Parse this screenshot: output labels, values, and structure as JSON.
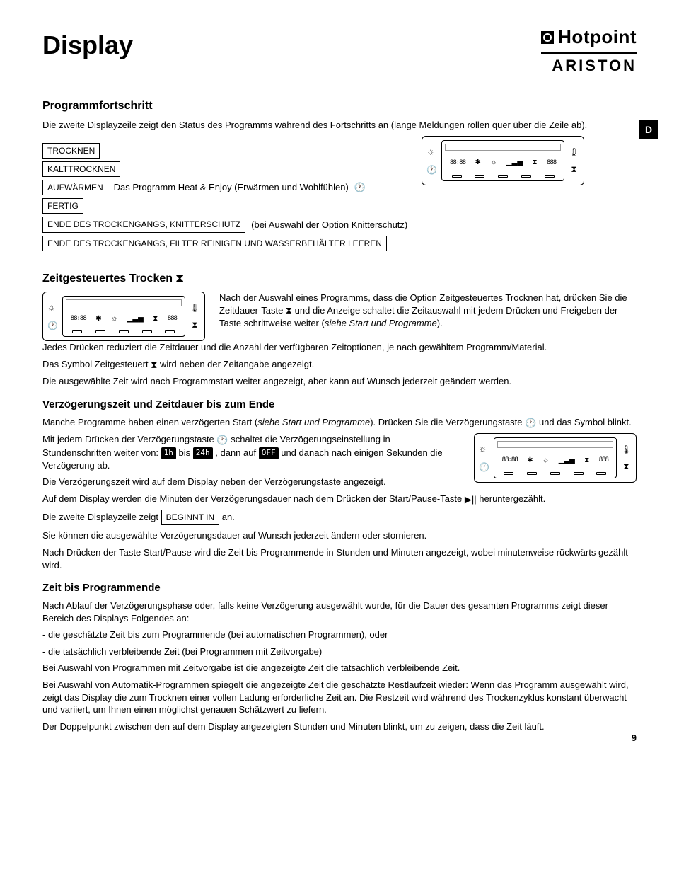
{
  "title": "Display",
  "brand": {
    "line1": "Hotpoint",
    "line2": "ARISTON"
  },
  "lang_tab": "D",
  "page_number": "9",
  "section1": {
    "heading": "Programmfortschritt",
    "intro": "Die zweite Displayzeile zeigt den Status des Programms während des Fortschritts an (lange Meldungen rollen quer über die Zeile ab).",
    "rows": [
      {
        "label": "TROCKNEN"
      },
      {
        "label": "KALTTROCKNEN"
      },
      {
        "label": "AUFWÄRMEN",
        "note": "Das Programm Heat & Enjoy (Erwärmen und Wohlfühlen)"
      },
      {
        "label": "FERTIG"
      },
      {
        "label": "ENDE DES TROCKENGANGS, KNITTERSCHUTZ",
        "note": "(bei Auswahl der Option Knitterschutz)"
      },
      {
        "label": "ENDE DES TROCKENGANGS, FILTER REINIGEN UND WASSERBEHÄLTER LEEREN"
      }
    ]
  },
  "section2": {
    "heading": "Zeitgesteuertes Trocken",
    "para_inline": "Nach der Auswahl eines Programms, dass die Option Zeitgesteuertes Trocknen hat, drücken Sie die Zeitdauer-Taste ⧗ und die Anzeige schaltet die Zeitauswahl mit jedem Drücken und Freigeben der Taste schrittweise weiter (",
    "para_inline_italic": "siehe Start und Programme",
    "para_inline_end": ").",
    "p2": "Jedes Drücken reduziert die Zeitdauer und die Anzahl der verfügbaren Zeitoptionen, je nach gewähltem Programm/Material.",
    "p3a": "Das Symbol Zeitgesteuert ",
    "p3b": " wird neben der Zeitangabe angezeigt.",
    "p4": "Die ausgewählte Zeit wird nach Programmstart weiter angezeigt, aber kann auf Wunsch jederzeit geändert werden."
  },
  "section3": {
    "heading": "Verzögerungszeit und Zeitdauer bis zum Ende",
    "p1a": "Manche Programme haben einen verzögerten Start (",
    "p1_italic": "siehe Start und Programme",
    "p1b": "). Drücken Sie die Verzögerungstaste ",
    "p1c": " und das Symbol blinkt.",
    "p2a": "Mit jedem Drücken der Verzögerungstaste ",
    "p2b": " schaltet die Verzögerungseinstellung in Stundenschritten weiter von: ",
    "pill_1h": "1h",
    "p2c": " bis ",
    "pill_24h": "24h",
    "p2d": " , dann auf ",
    "pill_off": "OFF",
    "p2e": " und danach nach einigen Sekunden die Verzögerung ab.",
    "p3": "Die Verzögerungszeit wird auf dem Display neben der Verzögerungstaste angezeigt.",
    "p4a": "Auf dem Display werden die Minuten der Verzögerungsdauer nach dem Drücken der Start/Pause-Taste ",
    "p4b": " heruntergezählt.",
    "p5a": "Die zweite Displayzeile zeigt ",
    "p5_box": "BEGINNT IN",
    "p5b": " an.",
    "p6": "Sie können die ausgewählte Verzögerungsdauer auf Wunsch jederzeit ändern oder stornieren.",
    "p7": "Nach Drücken der Taste Start/Pause wird die Zeit bis Programmende in Stunden und Minuten angezeigt, wobei minutenweise rückwärts gezählt wird."
  },
  "section4": {
    "heading": "Zeit bis Programmende",
    "p1": "Nach Ablauf der Verzögerungsphase oder, falls keine Verzögerung ausgewählt wurde, für die Dauer des gesamten Programms zeigt dieser Bereich des Displays Folgendes an:",
    "b1": "- die geschätzte Zeit bis zum Programmende (bei automatischen Programmen), oder",
    "b2": "- die tatsächlich verbleibende Zeit (bei Programmen mit Zeitvorgabe)",
    "p2": "Bei Auswahl von Programmen mit Zeitvorgabe ist die angezeigte Zeit die tatsächlich verbleibende Zeit.",
    "p3": "Bei Auswahl von Automatik-Programmen spiegelt die angezeigte Zeit die geschätzte Restlaufzeit wieder: Wenn das Programm ausgewählt wird, zeigt das Display die zum Trocknen einer vollen Ladung erforderliche Zeit an. Die Restzeit wird während des Trockenzyklus konstant überwacht und variiert, um Ihnen einen möglichst genauen Schätzwert zu liefern.",
    "p4": "Der Doppelpunkt zwischen den auf dem Display angezeigten Stunden und Minuten blinkt, um zu zeigen, dass die Zeit läuft."
  },
  "icons": {
    "clock": "🕐",
    "sun": "☼",
    "hourglass": "⧗",
    "thermo": "🌡",
    "fan": "✱",
    "bars": "▁▃▅",
    "playpause": "▶||"
  }
}
